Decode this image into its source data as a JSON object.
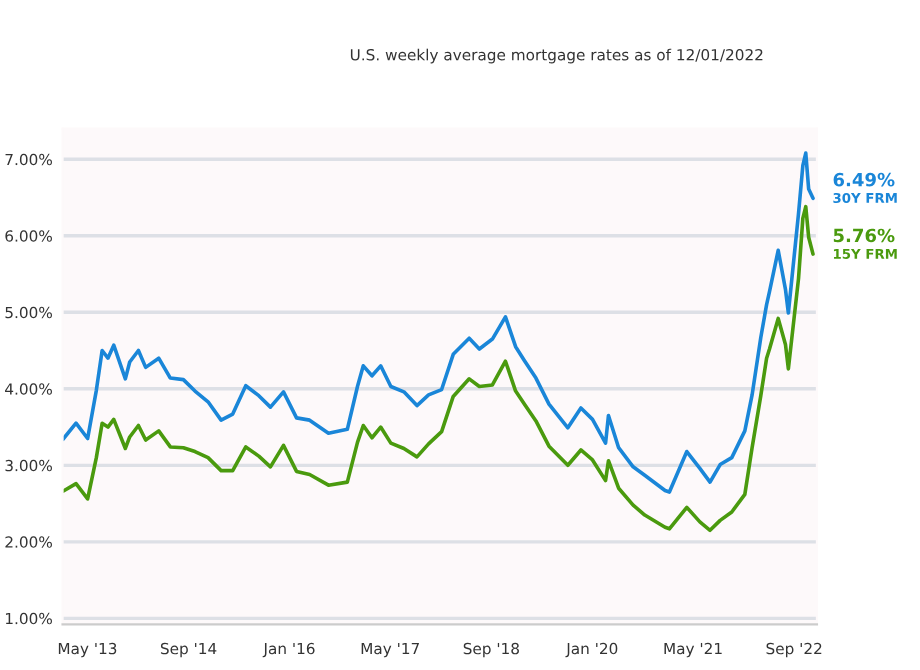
{
  "chart_data": {
    "type": "line",
    "subtitle": "U.S. weekly average mortgage rates as of 12/01/2022",
    "xlim": [
      "2013-01-01",
      "2022-12-20"
    ],
    "xticks": [
      {
        "value": "2013-05-01",
        "label": "May '13"
      },
      {
        "value": "2014-09-01",
        "label": "Sep '14"
      },
      {
        "value": "2016-01-01",
        "label": "Jan '16"
      },
      {
        "value": "2017-05-01",
        "label": "May '17"
      },
      {
        "value": "2018-09-01",
        "label": "Sep '18"
      },
      {
        "value": "2020-01-01",
        "label": "Jan '20"
      },
      {
        "value": "2021-05-01",
        "label": "May '21"
      },
      {
        "value": "2022-09-01",
        "label": "Sep '22"
      }
    ],
    "ylim": [
      0.92,
      7.4
    ],
    "yticks": [
      {
        "value": 1,
        "label": "1.00%"
      },
      {
        "value": 2,
        "label": "2.00%"
      },
      {
        "value": 3,
        "label": "3.00%"
      },
      {
        "value": 4,
        "label": "4.00%"
      },
      {
        "value": 5,
        "label": "5.00%"
      },
      {
        "value": 6,
        "label": "6.00%"
      },
      {
        "value": 7,
        "label": "7.00%"
      }
    ],
    "grid": "y",
    "legend": false,
    "marker": "none",
    "line_style": "solid",
    "x": [
      "2013-01-03",
      "2013-03-07",
      "2013-05-02",
      "2013-06-13",
      "2013-07-11",
      "2013-08-08",
      "2013-09-05",
      "2013-10-31",
      "2013-11-21",
      "2014-01-02",
      "2014-02-06",
      "2014-04-10",
      "2014-06-05",
      "2014-08-07",
      "2014-10-02",
      "2014-12-04",
      "2015-02-05",
      "2015-04-02",
      "2015-06-04",
      "2015-08-06",
      "2015-10-01",
      "2015-12-03",
      "2016-02-04",
      "2016-04-07",
      "2016-07-07",
      "2016-10-06",
      "2016-11-24",
      "2016-12-22",
      "2017-02-02",
      "2017-03-16",
      "2017-05-04",
      "2017-07-06",
      "2017-09-07",
      "2017-11-02",
      "2018-01-04",
      "2018-03-01",
      "2018-05-17",
      "2018-07-05",
      "2018-09-06",
      "2018-11-08",
      "2018-12-27",
      "2019-02-07",
      "2019-04-04",
      "2019-06-06",
      "2019-09-05",
      "2019-11-07",
      "2020-01-02",
      "2020-03-05",
      "2020-03-19",
      "2020-05-07",
      "2020-07-16",
      "2020-09-10",
      "2020-12-17",
      "2021-01-07",
      "2021-04-01",
      "2021-06-03",
      "2021-07-22",
      "2021-09-09",
      "2021-11-04",
      "2022-01-06",
      "2022-02-10",
      "2022-03-24",
      "2022-04-21",
      "2022-05-05",
      "2022-06-16",
      "2022-07-21",
      "2022-08-04",
      "2022-09-22",
      "2022-10-13",
      "2022-10-27",
      "2022-11-10",
      "2022-12-01"
    ],
    "series": [
      {
        "name": "30Y FRM",
        "color": "#1a86d8",
        "values": [
          3.34,
          3.55,
          3.35,
          3.98,
          4.5,
          4.4,
          4.57,
          4.13,
          4.35,
          4.5,
          4.28,
          4.4,
          4.14,
          4.12,
          3.97,
          3.83,
          3.59,
          3.67,
          4.04,
          3.91,
          3.76,
          3.96,
          3.62,
          3.59,
          3.42,
          3.47,
          4.03,
          4.3,
          4.17,
          4.3,
          4.03,
          3.96,
          3.78,
          3.92,
          3.99,
          4.45,
          4.66,
          4.52,
          4.65,
          4.94,
          4.55,
          4.37,
          4.14,
          3.8,
          3.49,
          3.75,
          3.6,
          3.29,
          3.65,
          3.23,
          2.98,
          2.87,
          2.67,
          2.65,
          3.18,
          2.96,
          2.78,
          3.01,
          3.1,
          3.45,
          3.92,
          4.67,
          5.1,
          5.27,
          5.81,
          5.3,
          4.99,
          6.29,
          6.92,
          7.08,
          6.61,
          6.49
        ]
      },
      {
        "name": "15Y FRM",
        "color": "#4a9a0e",
        "values": [
          2.66,
          2.76,
          2.56,
          3.1,
          3.55,
          3.5,
          3.6,
          3.22,
          3.37,
          3.52,
          3.33,
          3.45,
          3.24,
          3.23,
          3.18,
          3.1,
          2.93,
          2.93,
          3.24,
          3.12,
          2.98,
          3.26,
          2.92,
          2.88,
          2.74,
          2.78,
          3.3,
          3.52,
          3.36,
          3.5,
          3.29,
          3.22,
          3.11,
          3.28,
          3.44,
          3.9,
          4.13,
          4.03,
          4.05,
          4.36,
          3.97,
          3.8,
          3.58,
          3.25,
          3.0,
          3.2,
          3.07,
          2.8,
          3.06,
          2.7,
          2.48,
          2.35,
          2.19,
          2.17,
          2.45,
          2.26,
          2.15,
          2.28,
          2.39,
          2.62,
          3.23,
          3.91,
          4.4,
          4.52,
          4.92,
          4.58,
          4.26,
          5.44,
          6.23,
          6.38,
          5.98,
          5.76
        ]
      }
    ],
    "annotations": [
      {
        "text": "6.49%",
        "x": "2022-12-01",
        "y": 6.49
      },
      {
        "text": "5.76%",
        "x": "2022-12-01",
        "y": 5.76
      }
    ]
  }
}
